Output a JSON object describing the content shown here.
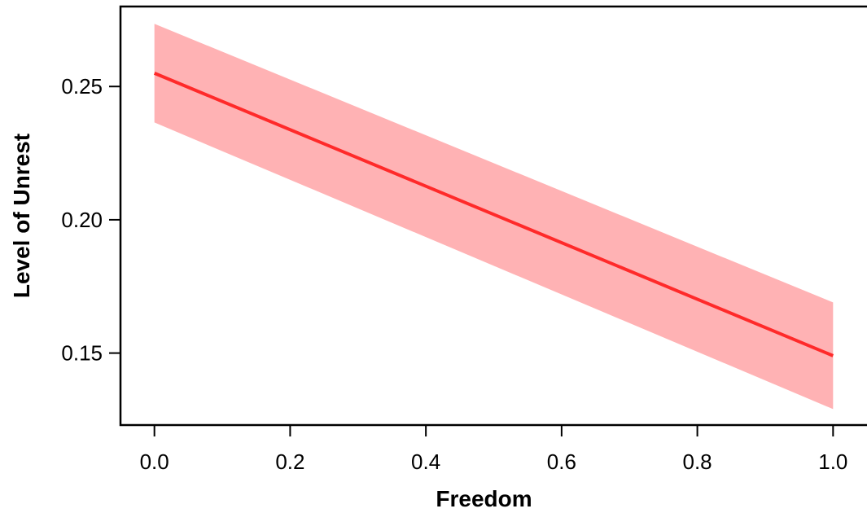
{
  "chart_data": {
    "type": "line",
    "title": "",
    "xlabel": "Freedom",
    "ylabel": "Level of Unrest",
    "xlim": [
      -0.05,
      1.05
    ],
    "ylim": [
      0.123,
      0.28
    ],
    "x_ticks": [
      0.0,
      0.2,
      0.4,
      0.6,
      0.8,
      1.0
    ],
    "x_tick_labels": [
      "0.0",
      "0.2",
      "0.4",
      "0.6",
      "0.8",
      "1.0"
    ],
    "y_ticks": [
      0.15,
      0.2,
      0.25
    ],
    "y_tick_labels": [
      "0.15",
      "0.20",
      "0.25"
    ],
    "grid": false,
    "series": [
      {
        "x": [
          0.0,
          1.0
        ],
        "y": [
          0.255,
          0.149
        ],
        "lower": [
          0.2365,
          0.129
        ],
        "upper": [
          0.2735,
          0.169
        ],
        "color": "#ff2a2a",
        "band_color": "#ffb2b4"
      }
    ]
  }
}
